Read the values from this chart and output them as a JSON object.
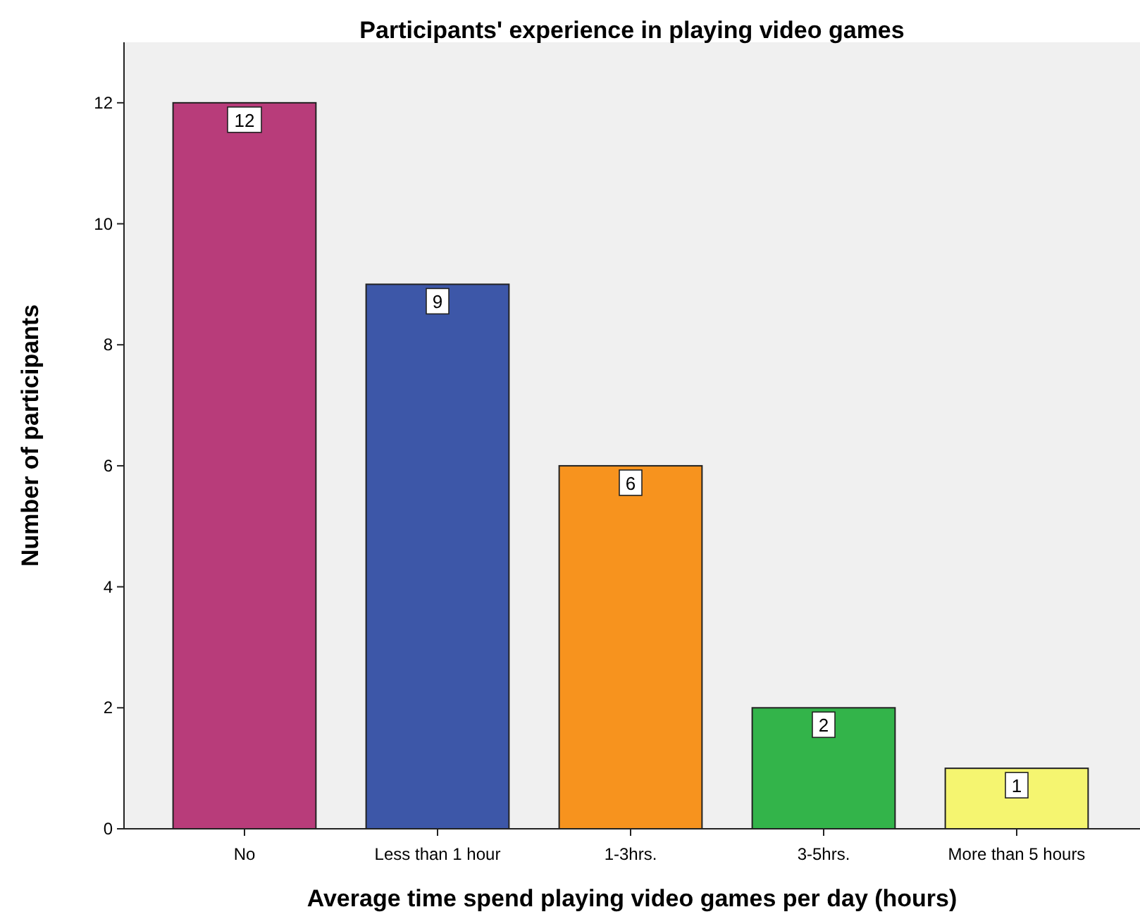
{
  "chart_data": {
    "type": "bar",
    "title": "Participants' experience in playing video games",
    "xlabel": "Average time spend playing video games per day (hours)",
    "ylabel": "Number of participants",
    "categories": [
      "No",
      "Less than 1 hour",
      "1-3hrs.",
      "3-5hrs.",
      "More than 5 hours"
    ],
    "values": [
      12,
      9,
      6,
      2,
      1
    ],
    "colors": [
      "#b83c7a",
      "#3d57a8",
      "#f7931e",
      "#33b44a",
      "#f5f570"
    ],
    "ylim": [
      0,
      13
    ],
    "yticks": [
      0,
      2,
      4,
      6,
      8,
      10,
      12
    ],
    "data_labels": true,
    "grid": false
  }
}
